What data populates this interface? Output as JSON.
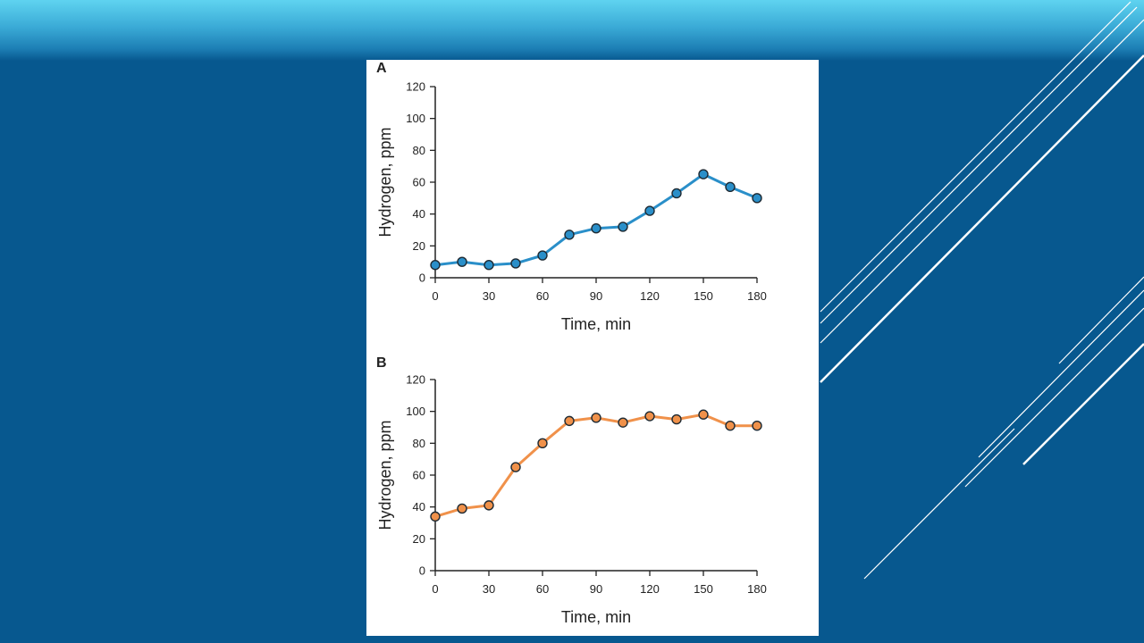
{
  "slide": {
    "background_color": "#07588f",
    "accent_color": "#5fd3f0"
  },
  "chart_data": [
    {
      "panel": "A",
      "type": "line",
      "xlabel": "Time, min",
      "ylabel": "Hydrogen, ppm",
      "xlim": [
        0,
        180
      ],
      "ylim": [
        0,
        120
      ],
      "xticks": [
        0,
        30,
        60,
        90,
        120,
        150,
        180
      ],
      "yticks": [
        0,
        20,
        40,
        60,
        80,
        100,
        120
      ],
      "grid": false,
      "color": "#2a8fc9",
      "x": [
        0,
        15,
        30,
        45,
        60,
        75,
        90,
        105,
        120,
        135,
        150,
        165,
        180
      ],
      "y": [
        8,
        10,
        8,
        9,
        14,
        27,
        31,
        32,
        42,
        53,
        65,
        57,
        50
      ]
    },
    {
      "panel": "B",
      "type": "line",
      "xlabel": "Time, min",
      "ylabel": "Hydrogen, ppm",
      "xlim": [
        0,
        180
      ],
      "ylim": [
        0,
        120
      ],
      "xticks": [
        0,
        30,
        60,
        90,
        120,
        150,
        180
      ],
      "yticks": [
        0,
        20,
        40,
        60,
        80,
        100,
        120
      ],
      "grid": false,
      "color": "#f0914a",
      "x": [
        0,
        15,
        30,
        45,
        60,
        75,
        90,
        105,
        120,
        135,
        150,
        165,
        180
      ],
      "y": [
        34,
        39,
        41,
        65,
        80,
        94,
        96,
        93,
        97,
        95,
        98,
        91,
        91
      ]
    }
  ]
}
